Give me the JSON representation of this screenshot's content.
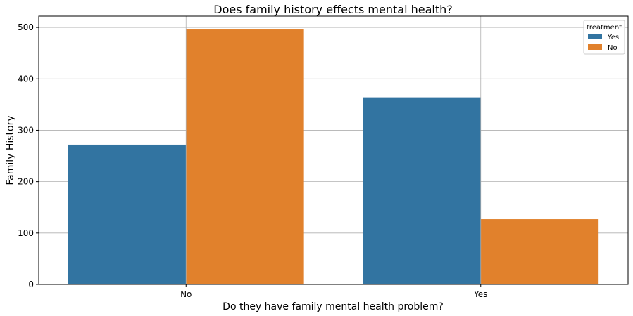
{
  "chart_data": {
    "type": "bar",
    "title": "Does family history effects mental health?",
    "xlabel": "Do they have family mental health problem?",
    "ylabel": "Family History",
    "categories": [
      "No",
      "Yes"
    ],
    "series": [
      {
        "name": "Yes",
        "values": [
          272,
          364
        ],
        "color": "#3274a1"
      },
      {
        "name": "No",
        "values": [
          496,
          127
        ],
        "color": "#e1812c"
      }
    ],
    "ylim": [
      0,
      522
    ],
    "yticks": [
      0,
      100,
      200,
      300,
      400,
      500
    ],
    "grid": true,
    "legend": {
      "title": "treatment",
      "position": "top-right"
    }
  }
}
